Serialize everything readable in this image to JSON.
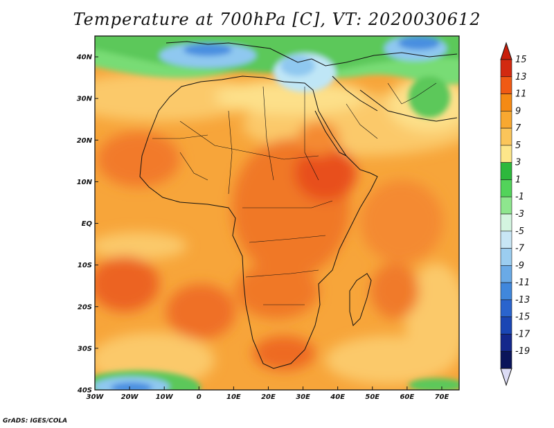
{
  "title": "Temperature at 700hPa [C], VT: 2020030612",
  "credit": "GrADS: IGES/COLA",
  "map": {
    "lon_range": [
      -30,
      75
    ],
    "lat_range": [
      -40,
      45
    ],
    "lat_ticks": [
      {
        "value": 40,
        "label": "40N"
      },
      {
        "value": 30,
        "label": "30N"
      },
      {
        "value": 20,
        "label": "20N"
      },
      {
        "value": 10,
        "label": "10N"
      },
      {
        "value": 0,
        "label": "EQ"
      },
      {
        "value": -10,
        "label": "10S"
      },
      {
        "value": -20,
        "label": "20S"
      },
      {
        "value": -30,
        "label": "30S"
      },
      {
        "value": -40,
        "label": "40S"
      }
    ],
    "lon_ticks": [
      {
        "value": -30,
        "label": "30W"
      },
      {
        "value": -20,
        "label": "20W"
      },
      {
        "value": -10,
        "label": "10W"
      },
      {
        "value": 0,
        "label": "0"
      },
      {
        "value": 10,
        "label": "10E"
      },
      {
        "value": 20,
        "label": "20E"
      },
      {
        "value": 30,
        "label": "30E"
      },
      {
        "value": 40,
        "label": "40E"
      },
      {
        "value": 50,
        "label": "50E"
      },
      {
        "value": 60,
        "label": "60E"
      },
      {
        "value": 70,
        "label": "70E"
      }
    ]
  },
  "colorbar": {
    "labels": [
      "15",
      "13",
      "11",
      "9",
      "7",
      "5",
      "3",
      "1",
      "-1",
      "-3",
      "-5",
      "-7",
      "-9",
      "-11",
      "-13",
      "-15",
      "-17",
      "-19"
    ],
    "colors": [
      "#d22a10",
      "#f05a14",
      "#f58a14",
      "#f8a830",
      "#fbc55a",
      "#fde68a",
      "#2db83c",
      "#52d35a",
      "#8ee68e",
      "#d4f5e0",
      "#c8e6f5",
      "#9bcdf0",
      "#6aaae6",
      "#4087dc",
      "#2a64cd",
      "#1a46b4",
      "#14288c",
      "#0a145a"
    ],
    "top_tip_color": "#c81e0a",
    "bottom_tip_color": "#dcdcf5"
  }
}
